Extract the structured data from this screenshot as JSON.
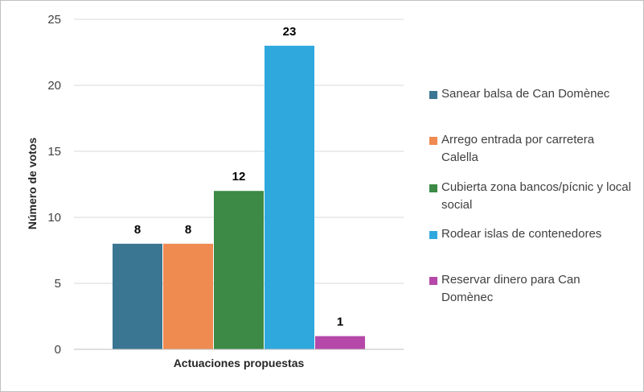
{
  "chart_data": {
    "type": "bar",
    "categories": [
      "Actuaciones propuestas"
    ],
    "series": [
      {
        "name": "Sanear balsa de Can Domènec",
        "values": [
          8
        ],
        "color": "#3a7592"
      },
      {
        "name": "Arrego entrada por carretera Calella",
        "values": [
          8
        ],
        "color": "#ef8a50"
      },
      {
        "name": "Cubierta zona bancos/pícnic y local social",
        "values": [
          12
        ],
        "color": "#3c8a45"
      },
      {
        "name": "Rodear islas de contenedores",
        "values": [
          23
        ],
        "color": "#2fa8dd"
      },
      {
        "name": "Reservar dinero para Can Domènec",
        "values": [
          1
        ],
        "color": "#b548a8"
      }
    ],
    "title": "",
    "xlabel": "Actuaciones propuestas",
    "ylabel": "Número de votos",
    "ylim": [
      0,
      25
    ],
    "yticks": [
      0,
      5,
      10,
      15,
      20,
      25
    ],
    "data_labels": [
      "8",
      "8",
      "12",
      "23",
      "1"
    ],
    "grid": true,
    "legend_position": "right"
  }
}
